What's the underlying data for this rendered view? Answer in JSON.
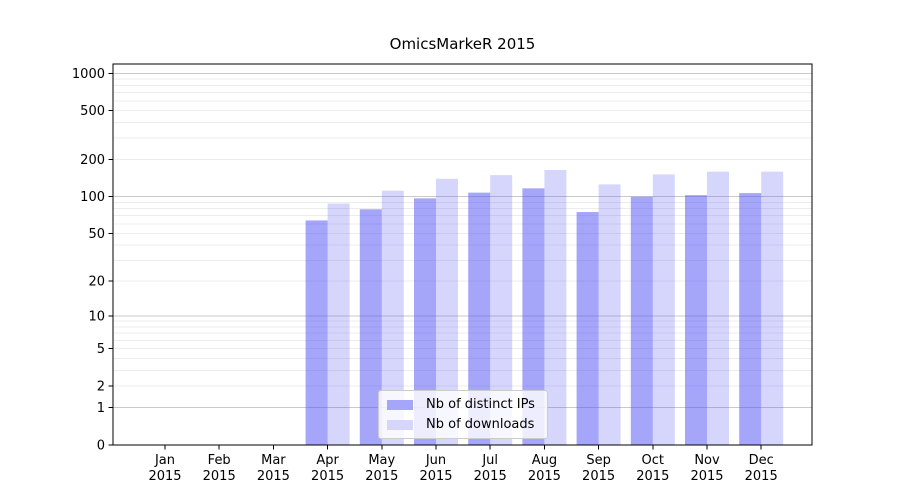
{
  "figure": {
    "background": "#ffffff"
  },
  "chart_data": {
    "type": "bar",
    "title": "OmicsMarkeR 2015",
    "xlabel": "",
    "ylabel": "",
    "x_categories": [
      {
        "month": "Jan",
        "year": "2015"
      },
      {
        "month": "Feb",
        "year": "2015"
      },
      {
        "month": "Mar",
        "year": "2015"
      },
      {
        "month": "Apr",
        "year": "2015"
      },
      {
        "month": "May",
        "year": "2015"
      },
      {
        "month": "Jun",
        "year": "2015"
      },
      {
        "month": "Jul",
        "year": "2015"
      },
      {
        "month": "Aug",
        "year": "2015"
      },
      {
        "month": "Sep",
        "year": "2015"
      },
      {
        "month": "Oct",
        "year": "2015"
      },
      {
        "month": "Nov",
        "year": "2015"
      },
      {
        "month": "Dec",
        "year": "2015"
      }
    ],
    "series": [
      {
        "name": "Nb of distinct IPs",
        "color": "rgba(82,82,245,0.52)",
        "legend_color": "#a5a5fa",
        "values": [
          0,
          0,
          0,
          64,
          79,
          97,
          108,
          117,
          75,
          100,
          103,
          107
        ]
      },
      {
        "name": "Nb of downloads",
        "color": "rgba(82,82,245,0.24)",
        "legend_color": "#d6d6fd",
        "values": [
          0,
          0,
          0,
          88,
          112,
          140,
          150,
          165,
          126,
          152,
          160,
          160
        ]
      }
    ],
    "y_scale": "log1p",
    "y_ticks": [
      {
        "label": "1000",
        "value": 1000
      },
      {
        "label": "500",
        "value": 500
      },
      {
        "label": "200",
        "value": 200
      },
      {
        "label": "100",
        "value": 100
      },
      {
        "label": "50",
        "value": 50
      },
      {
        "label": "20",
        "value": 20
      },
      {
        "label": "10",
        "value": 10
      },
      {
        "label": "5",
        "value": 5
      },
      {
        "label": "2",
        "value": 2
      },
      {
        "label": "1",
        "value": 1
      },
      {
        "label": "0",
        "value": 0
      }
    ],
    "y_major_gridlines": [
      1,
      10,
      100,
      1000
    ],
    "y_minor_gridlines": [
      2,
      3,
      4,
      5,
      6,
      7,
      8,
      9,
      20,
      30,
      40,
      50,
      60,
      70,
      80,
      90,
      200,
      300,
      400,
      500,
      600,
      700,
      800,
      900
    ],
    "ylim_top": 1190,
    "grid_major_color": "#c9c9c9",
    "grid_minor_color": "#ececec",
    "axis_color": "#000000",
    "legend_position": "lower center"
  }
}
